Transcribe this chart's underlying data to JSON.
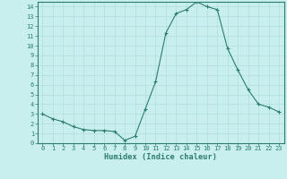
{
  "x": [
    0,
    1,
    2,
    3,
    4,
    5,
    6,
    7,
    8,
    9,
    10,
    11,
    12,
    13,
    14,
    15,
    16,
    17,
    18,
    19,
    20,
    21,
    22,
    23
  ],
  "y": [
    3.0,
    2.5,
    2.2,
    1.7,
    1.4,
    1.3,
    1.3,
    1.2,
    0.3,
    0.7,
    3.5,
    6.3,
    11.3,
    13.3,
    13.7,
    14.5,
    14.0,
    13.7,
    9.7,
    7.5,
    5.5,
    4.0,
    3.7,
    3.2
  ],
  "xlabel": "Humidex (Indice chaleur)",
  "line_color": "#2d7d6b",
  "marker": "+",
  "bg_color": "#c8eeee",
  "grid_color": "#b0dede",
  "tick_color": "#2d7d6b",
  "spine_color": "#2d7d6b",
  "xlim": [
    -0.5,
    23.5
  ],
  "ylim": [
    0,
    14.5
  ],
  "yticks": [
    0,
    1,
    2,
    3,
    4,
    5,
    6,
    7,
    8,
    9,
    10,
    11,
    12,
    13,
    14
  ],
  "xticks": [
    0,
    1,
    2,
    3,
    4,
    5,
    6,
    7,
    8,
    9,
    10,
    11,
    12,
    13,
    14,
    15,
    16,
    17,
    18,
    19,
    20,
    21,
    22,
    23
  ],
  "tick_fontsize": 5.0,
  "xlabel_fontsize": 6.2,
  "linewidth": 0.8,
  "markersize": 3.0,
  "markeredgewidth": 0.8
}
